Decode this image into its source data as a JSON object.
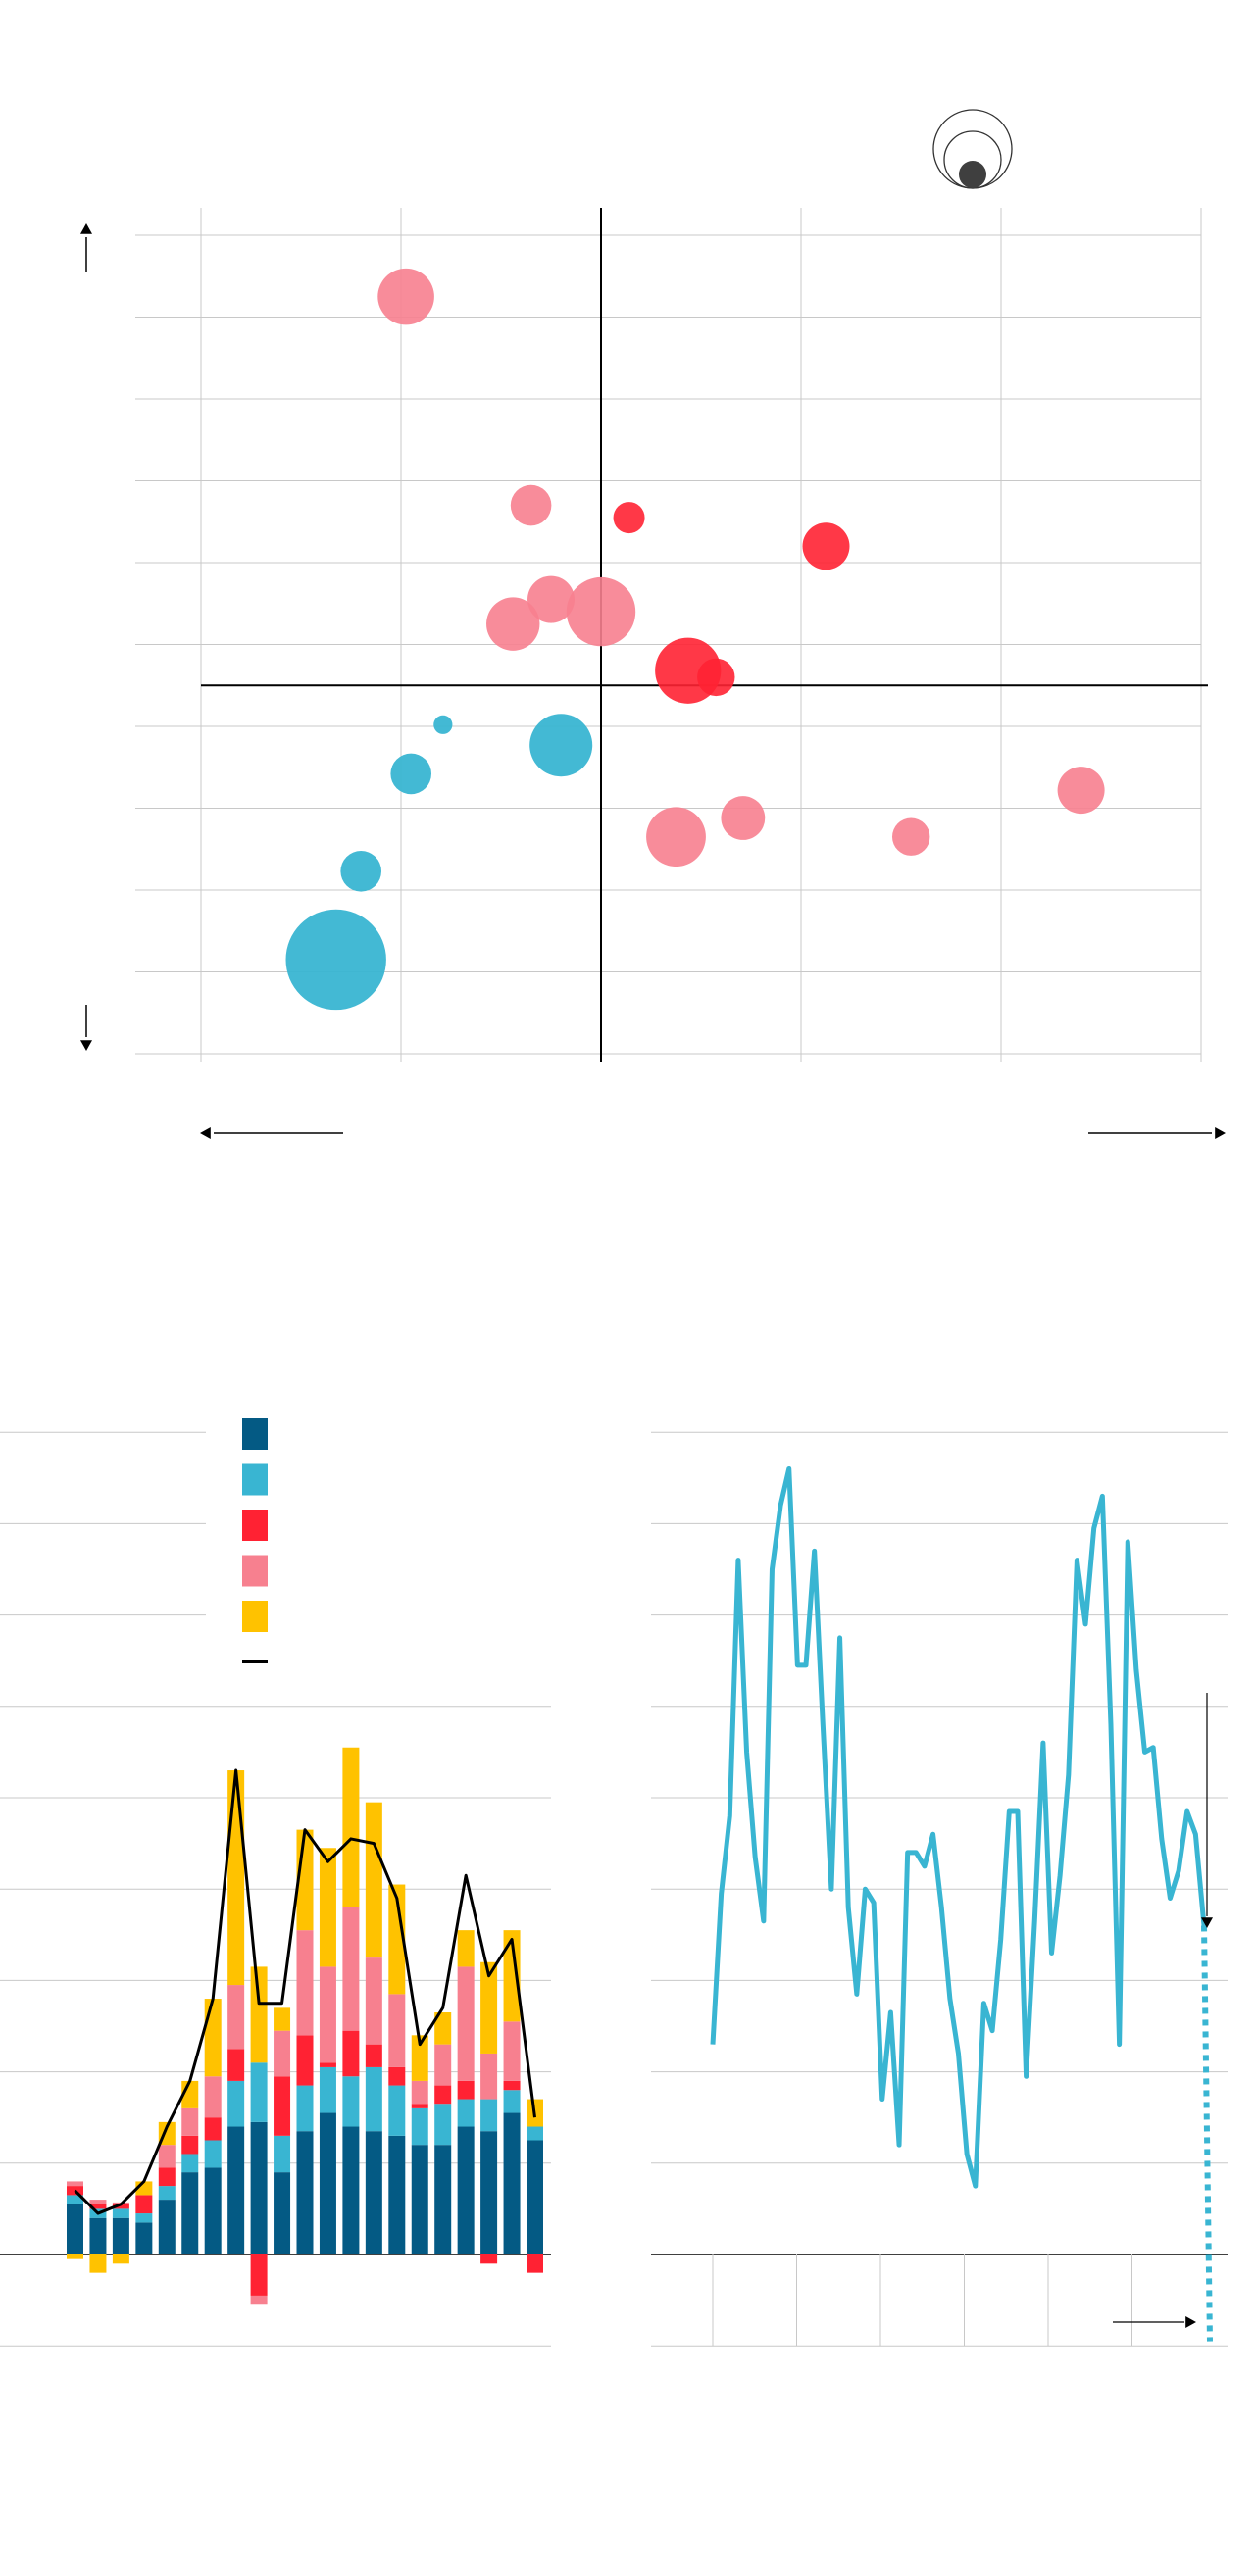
{
  "colors": {
    "red": "#FF2233",
    "pink": "#F7808F",
    "cyan": "#39B5D2",
    "navy": "#045A84",
    "yellow": "#FFC200",
    "line": "#000000",
    "grid": "#c8c8c8",
    "legend_circle": "#3f3f3f"
  },
  "chart_data": [
    {
      "type": "scatter",
      "title": "",
      "xlabel": "",
      "ylabel": "",
      "xlim": [
        -4,
        6
      ],
      "ylim": [
        -4.5,
        5.5
      ],
      "x_grid": [
        -4,
        -2,
        0,
        2,
        4,
        6
      ],
      "y_grid": [
        5.5,
        4.5,
        3.5,
        2.5,
        1.5,
        0.5,
        -0.5,
        -1.5,
        -2.5,
        -3.5,
        -4.5
      ],
      "axis_arrows": [
        "up",
        "down",
        "left",
        "right"
      ],
      "size_legend": true,
      "points": [
        {
          "x": -1.95,
          "y": 4.75,
          "size": 18,
          "color": "pink"
        },
        {
          "x": -0.7,
          "y": 2.2,
          "size": 13,
          "color": "pink"
        },
        {
          "x": 0.28,
          "y": 2.05,
          "size": 10,
          "color": "red"
        },
        {
          "x": 2.25,
          "y": 1.7,
          "size": 15,
          "color": "red"
        },
        {
          "x": -0.5,
          "y": 1.05,
          "size": 15,
          "color": "pink"
        },
        {
          "x": -0.88,
          "y": 0.75,
          "size": 17,
          "color": "pink"
        },
        {
          "x": 0.0,
          "y": 0.9,
          "size": 22,
          "color": "pink"
        },
        {
          "x": 0.87,
          "y": 0.18,
          "size": 21,
          "color": "red"
        },
        {
          "x": 1.15,
          "y": 0.1,
          "size": 12,
          "color": "red"
        },
        {
          "x": -1.58,
          "y": -0.48,
          "size": 6,
          "color": "cyan"
        },
        {
          "x": -0.4,
          "y": -0.73,
          "size": 20,
          "color": "cyan"
        },
        {
          "x": -1.9,
          "y": -1.08,
          "size": 13,
          "color": "cyan"
        },
        {
          "x": 4.8,
          "y": -1.28,
          "size": 15,
          "color": "pink"
        },
        {
          "x": 1.42,
          "y": -1.62,
          "size": 14,
          "color": "pink"
        },
        {
          "x": 0.75,
          "y": -1.85,
          "size": 19,
          "color": "pink"
        },
        {
          "x": 3.1,
          "y": -1.85,
          "size": 12,
          "color": "pink"
        },
        {
          "x": -2.4,
          "y": -2.27,
          "size": 13,
          "color": "cyan"
        },
        {
          "x": -2.65,
          "y": -3.35,
          "size": 32,
          "color": "cyan"
        }
      ]
    },
    {
      "type": "bar",
      "stacked": true,
      "title": "",
      "ylim": [
        -1,
        9
      ],
      "gridlines": [
        9,
        8,
        7,
        6,
        5,
        4,
        3,
        2,
        1,
        -1
      ],
      "series": [
        {
          "color": "navy",
          "values": [
            0.55,
            0.4,
            0.4,
            0.35,
            0.6,
            0.9,
            0.95,
            1.4,
            1.45,
            0.9,
            1.35,
            1.55,
            1.4,
            1.35,
            1.3,
            1.2,
            1.2,
            1.4,
            1.35,
            1.55,
            1.25
          ]
        },
        {
          "color": "cyan",
          "values": [
            0.1,
            0.1,
            0.1,
            0.1,
            0.15,
            0.2,
            0.3,
            0.5,
            0.65,
            0.4,
            0.5,
            0.5,
            0.55,
            0.7,
            0.55,
            0.4,
            0.45,
            0.3,
            0.35,
            0.25,
            0.15
          ]
        },
        {
          "color": "red",
          "values": [
            0.1,
            0.05,
            0.05,
            0.2,
            0.2,
            0.2,
            0.25,
            0.35,
            -0.45,
            0.65,
            0.55,
            0.05,
            0.5,
            0.25,
            0.2,
            0.05,
            0.2,
            0.2,
            -0.1,
            0.1,
            -0.2
          ]
        },
        {
          "color": "pink",
          "values": [
            0.05,
            0.05,
            0.02,
            0.0,
            0.25,
            0.3,
            0.45,
            0.7,
            -0.1,
            0.5,
            1.15,
            1.05,
            1.35,
            0.95,
            0.8,
            0.25,
            0.45,
            1.25,
            0.5,
            0.65,
            0.0
          ]
        },
        {
          "color": "yellow",
          "values": [
            -0.05,
            -0.2,
            -0.1,
            0.15,
            0.25,
            0.3,
            0.85,
            2.35,
            1.05,
            0.25,
            1.1,
            1.3,
            1.75,
            1.7,
            1.2,
            0.5,
            0.35,
            0.4,
            1.0,
            1.0,
            0.3
          ]
        }
      ],
      "line": {
        "color": "line",
        "values": [
          0.7,
          0.45,
          0.55,
          0.8,
          1.4,
          1.9,
          2.8,
          5.3,
          2.75,
          2.75,
          4.65,
          4.3,
          4.55,
          4.5,
          3.9,
          2.3,
          2.7,
          4.15,
          3.05,
          3.45,
          1.5
        ]
      },
      "legend": [
        "navy",
        "cyan",
        "red",
        "pink",
        "yellow",
        "line"
      ]
    },
    {
      "type": "line",
      "title": "",
      "ylim": [
        -1,
        9
      ],
      "gridlines": [
        9,
        8,
        7,
        6,
        5,
        4,
        3,
        2,
        1,
        0,
        -1
      ],
      "vgrid_count": 6,
      "color": "cyan",
      "values": [
        2.3,
        3.95,
        4.8,
        7.6,
        5.5,
        4.35,
        3.65,
        7.5,
        8.2,
        8.6,
        6.45,
        6.45,
        7.7,
        5.8,
        4.0,
        6.75,
        3.8,
        2.85,
        4.0,
        3.85,
        1.7,
        2.65,
        1.2,
        4.4,
        4.4,
        4.25,
        4.6,
        3.8,
        2.8,
        2.2,
        1.1,
        0.75,
        2.75,
        2.45,
        3.45,
        4.85,
        4.85,
        1.95,
        3.65,
        5.6,
        3.3,
        4.15,
        5.25,
        7.6,
        6.9,
        7.95,
        8.3,
        5.8,
        2.3,
        7.8,
        6.4,
        5.5,
        5.55,
        4.55,
        3.9,
        4.2,
        4.85,
        4.6,
        3.6
      ],
      "projection": {
        "from": 3.6,
        "to": -0.95,
        "style": "dotted"
      },
      "arrow_down_ref": true,
      "arrow_right_ref": true
    }
  ]
}
